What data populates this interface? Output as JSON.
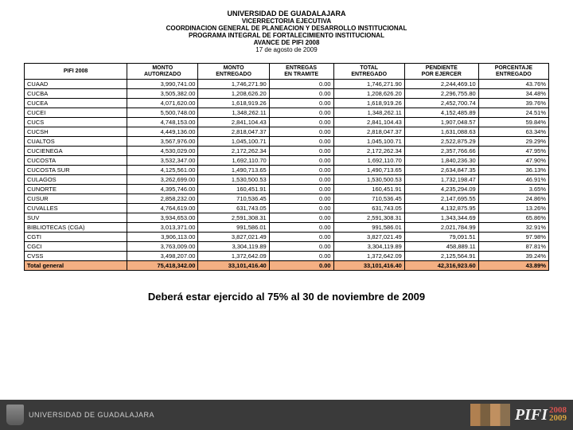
{
  "header": {
    "line1": "UNIVERSIDAD DE GUADALAJARA",
    "line2": "VICERRECTORIA EJECUTIVA",
    "line3": "COORDINACION GENERAL DE PLANEACION Y DESARROLLO INSTITUCIONAL",
    "line4": "PROGRAMA INTEGRAL DE FORTALECIMIENTO INSTITUCIONAL",
    "line5": "AVANCE DE PIFI 2008",
    "line6": "17 de agosto de 2009"
  },
  "table": {
    "columns": [
      "PIFI 2008",
      "MONTO AUTORIZADO",
      "MONTO ENTREGADO",
      "ENTREGAS EN TRAMITE",
      "TOTAL ENTREGADO",
      "PENDIENTE POR EJERCER",
      "PORCENTAJE ENTREGADO"
    ],
    "col_align": [
      "left",
      "right",
      "right",
      "right",
      "right",
      "right",
      "right"
    ],
    "rows": [
      [
        "CUAAD",
        "3,990,741.00",
        "1,746,271.90",
        "0.00",
        "1,746,271.90",
        "2,244,469.10",
        "43.76%"
      ],
      [
        "CUCBA",
        "3,505,382.00",
        "1,208,626.20",
        "0.00",
        "1,208,626.20",
        "2,296,755.80",
        "34.48%"
      ],
      [
        "CUCEA",
        "4,071,620.00",
        "1,618,919.26",
        "0.00",
        "1,618,919.26",
        "2,452,700.74",
        "39.76%"
      ],
      [
        "CUCEI",
        "5,500,748.00",
        "1,348,262.11",
        "0.00",
        "1,348,262.11",
        "4,152,485.89",
        "24.51%"
      ],
      [
        "CUCS",
        "4,748,153.00",
        "2,841,104.43",
        "0.00",
        "2,841,104.43",
        "1,907,048.57",
        "59.84%"
      ],
      [
        "CUCSH",
        "4,449,136.00",
        "2,818,047.37",
        "0.00",
        "2,818,047.37",
        "1,631,088.63",
        "63.34%"
      ],
      [
        "CUALTOS",
        "3,567,976.00",
        "1,045,100.71",
        "0.00",
        "1,045,100.71",
        "2,522,875.29",
        "29.29%"
      ],
      [
        "CUCIENEGA",
        "4,530,029.00",
        "2,172,262.34",
        "0.00",
        "2,172,262.34",
        "2,357,766.66",
        "47.95%"
      ],
      [
        "CUCOSTA",
        "3,532,347.00",
        "1,692,110.70",
        "0.00",
        "1,692,110.70",
        "1,840,236.30",
        "47.90%"
      ],
      [
        "CUCOSTA SUR",
        "4,125,561.00",
        "1,490,713.65",
        "0.00",
        "1,490,713.65",
        "2,634,847.35",
        "36.13%"
      ],
      [
        "CULAGOS",
        "3,262,699.00",
        "1,530,500.53",
        "0.00",
        "1,530,500.53",
        "1,732,198.47",
        "46.91%"
      ],
      [
        "CUNORTE",
        "4,395,746.00",
        "160,451.91",
        "0.00",
        "160,451.91",
        "4,235,294.09",
        "3.65%"
      ],
      [
        "CUSUR",
        "2,858,232.00",
        "710,536.45",
        "0.00",
        "710,536.45",
        "2,147,695.55",
        "24.86%"
      ],
      [
        "CUVALLES",
        "4,764,619.00",
        "631,743.05",
        "0.00",
        "631,743.05",
        "4,132,875.95",
        "13.26%"
      ],
      [
        "SUV",
        "3,934,653.00",
        "2,591,308.31",
        "0.00",
        "2,591,308.31",
        "1,343,344.69",
        "65.86%"
      ],
      [
        "BIBLIOTECAS (CGA)",
        "3,013,371.00",
        "991,586.01",
        "0.00",
        "991,586.01",
        "2,021,784.99",
        "32.91%"
      ],
      [
        "CGTI",
        "3,906,113.00",
        "3,827,021.49",
        "0.00",
        "3,827,021.49",
        "79,091.51",
        "97.98%"
      ],
      [
        "CGCI",
        "3,763,009.00",
        "3,304,119.89",
        "0.00",
        "3,304,119.89",
        "458,889.11",
        "87.81%"
      ],
      [
        "CVSS",
        "3,498,207.00",
        "1,372,642.09",
        "0.00",
        "1,372,642.09",
        "2,125,564.91",
        "39.24%"
      ]
    ],
    "total_row": [
      "Total general",
      "75,418,342.00",
      "33,101,416.40",
      "0.00",
      "33,101,416.40",
      "42,316,923.60",
      "43.89%"
    ],
    "total_bg": "#f4b083"
  },
  "note": "Deberá estar ejercido al 75% al 30 de noviembre de 2009",
  "footer": {
    "university": "UNIVERSIDAD DE GUADALAJARA",
    "logo_text": "PIFI",
    "year1": "2008",
    "year2": "2009"
  }
}
